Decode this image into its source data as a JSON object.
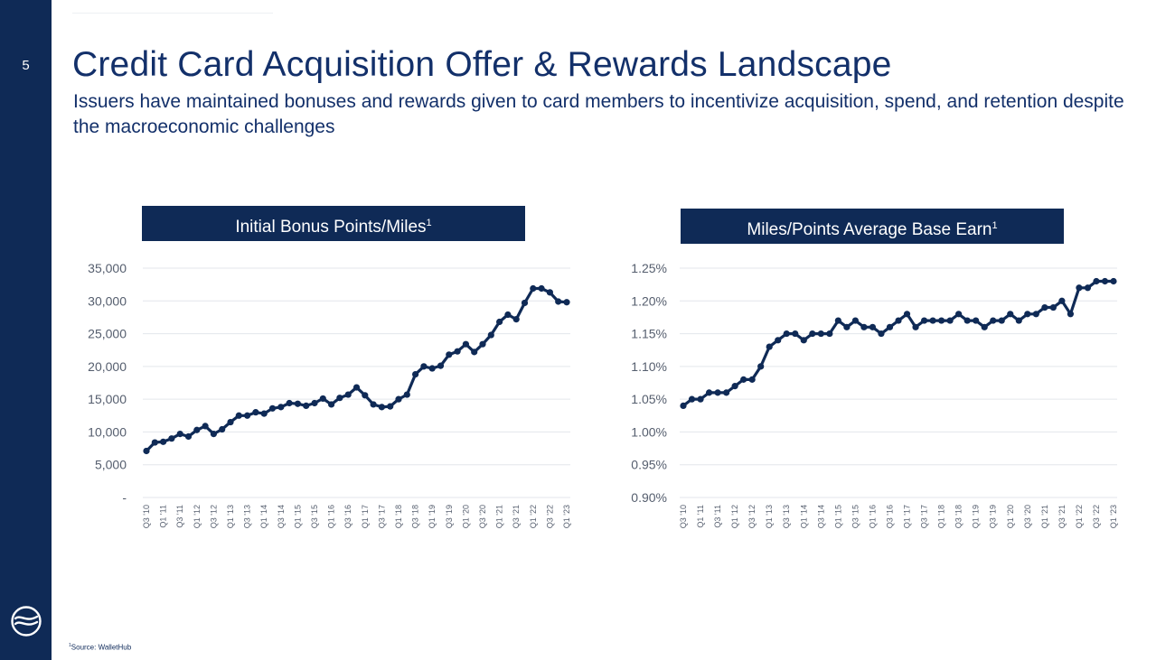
{
  "page": {
    "number": "5",
    "title": "Credit Card Acquisition Offer & Rewards Landscape",
    "subtitle": "Issuers have maintained bonuses and rewards given to card members to incentivize acquisition, spend, and retention despite the macroeconomic challenges",
    "footnote_sup": "1",
    "footnote": "Source: WalletHub"
  },
  "colors": {
    "sidebar": "#0f2a56",
    "line": "#0f2a56",
    "grid": "#e3e6eb",
    "tick_text": "#555e6e"
  },
  "icons": {
    "logo": "circle-wave-logo-icon"
  },
  "chart_data": [
    {
      "type": "line",
      "title": "Initial Bonus Points/Miles",
      "title_sup": "1",
      "ylim": [
        0,
        35000
      ],
      "y_ticks": [
        0,
        5000,
        10000,
        15000,
        20000,
        25000,
        30000,
        35000
      ],
      "y_tick_labels": [
        "-",
        "5,000",
        "10,000",
        "15,000",
        "20,000",
        "25,000",
        "30,000",
        "35,000"
      ],
      "x_labels": [
        "Q3 '10",
        "Q1 '11",
        "Q3 '11",
        "Q1 '12",
        "Q3 '12",
        "Q1 '13",
        "Q3 '13",
        "Q1 '14",
        "Q3 '14",
        "Q1 '15",
        "Q3 '15",
        "Q1 '16",
        "Q3 '16",
        "Q1 '17",
        "Q3 '17",
        "Q1 '18",
        "Q3 '18",
        "Q1 '19",
        "Q3 '19",
        "Q1 '20",
        "Q3 '20",
        "Q1 '21",
        "Q3 '21",
        "Q1 '22",
        "Q3 '22",
        "Q1 '23"
      ],
      "values": [
        7100,
        8400,
        8500,
        9000,
        9700,
        9300,
        10300,
        10900,
        9700,
        10400,
        11500,
        12500,
        12500,
        13000,
        12800,
        13600,
        13800,
        14400,
        14300,
        14000,
        14400,
        15100,
        14200,
        15200,
        15700,
        16800,
        15600,
        14200,
        13800,
        13900,
        15000,
        15700,
        18800,
        20000,
        19700,
        20100,
        21800,
        22300,
        23400,
        22200,
        23400,
        24800,
        26800,
        27900,
        27200,
        29700,
        31900,
        31900,
        31300,
        29900,
        29800
      ]
    },
    {
      "type": "line",
      "title": "Miles/Points Average Base Earn",
      "title_sup": "1",
      "ylim": [
        0.9,
        1.25
      ],
      "y_ticks": [
        0.9,
        0.95,
        1.0,
        1.05,
        1.1,
        1.15,
        1.2,
        1.25
      ],
      "y_tick_labels": [
        "0.90%",
        "0.95%",
        "1.00%",
        "1.05%",
        "1.10%",
        "1.15%",
        "1.20%",
        "1.25%"
      ],
      "x_labels": [
        "Q3 '10",
        "Q1 '11",
        "Q3 '11",
        "Q1 '12",
        "Q3 '12",
        "Q1 '13",
        "Q3 '13",
        "Q1 '14",
        "Q3 '14",
        "Q1 '15",
        "Q3 '15",
        "Q1 '16",
        "Q3 '16",
        "Q1 '17",
        "Q3 '17",
        "Q1 '18",
        "Q3 '18",
        "Q1 '19",
        "Q3 '19",
        "Q1 '20",
        "Q3 '20",
        "Q1 '21",
        "Q3 '21",
        "Q1 '22",
        "Q3 '22",
        "Q1 '23"
      ],
      "values": [
        1.04,
        1.05,
        1.05,
        1.06,
        1.06,
        1.06,
        1.07,
        1.08,
        1.08,
        1.1,
        1.13,
        1.14,
        1.15,
        1.15,
        1.14,
        1.15,
        1.15,
        1.15,
        1.17,
        1.16,
        1.17,
        1.16,
        1.16,
        1.15,
        1.16,
        1.17,
        1.18,
        1.16,
        1.17,
        1.17,
        1.17,
        1.17,
        1.18,
        1.17,
        1.17,
        1.16,
        1.17,
        1.17,
        1.18,
        1.17,
        1.18,
        1.18,
        1.19,
        1.19,
        1.2,
        1.18,
        1.22,
        1.22,
        1.23,
        1.23,
        1.23
      ]
    }
  ]
}
